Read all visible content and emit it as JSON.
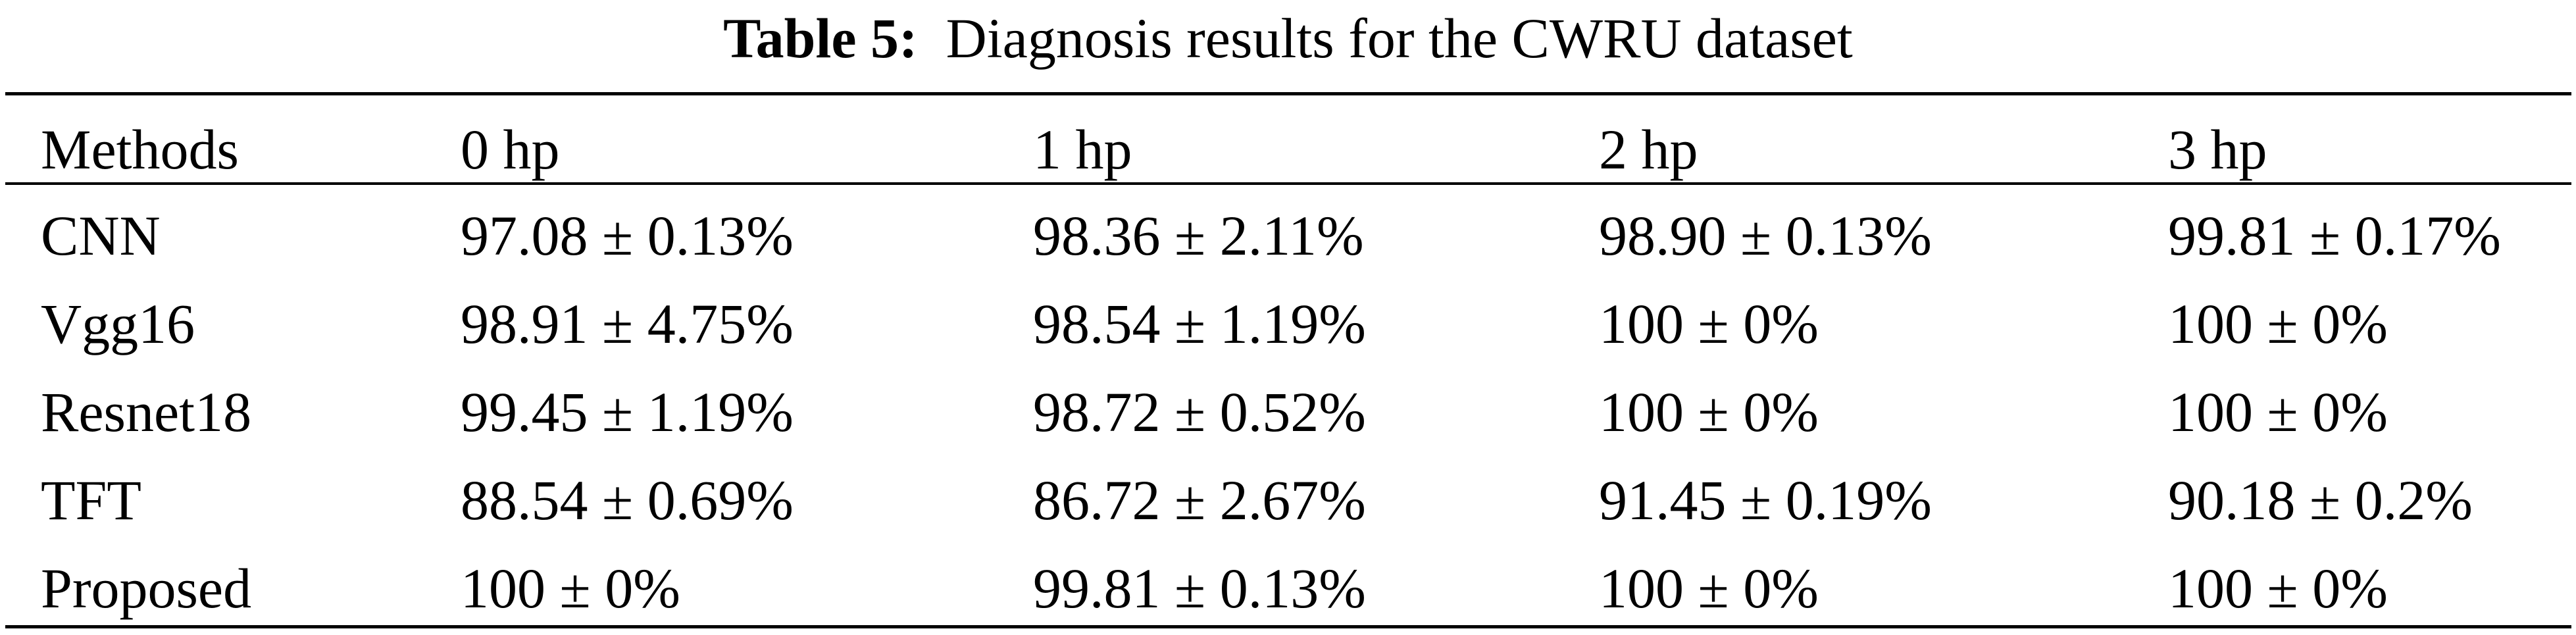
{
  "caption": {
    "label": "Table 5:",
    "text": "  Diagnosis results for the CWRU dataset"
  },
  "table": {
    "headers": [
      "Methods",
      "0 hp",
      "1 hp",
      "2 hp",
      "3 hp"
    ],
    "rows": [
      [
        "CNN",
        "97.08 ± 0.13%",
        "98.36 ± 2.11%",
        "98.90 ± 0.13%",
        "99.81 ± 0.17%"
      ],
      [
        "Vgg16",
        "98.91 ± 4.75%",
        "98.54 ± 1.19%",
        "100 ± 0%",
        "100 ± 0%"
      ],
      [
        "Resnet18",
        "99.45 ± 1.19%",
        "98.72 ± 0.52%",
        "100 ± 0%",
        "100 ± 0%"
      ],
      [
        "TFT",
        "88.54 ± 0.69%",
        "86.72 ± 2.67%",
        "91.45 ± 0.19%",
        "90.18 ± 0.2%"
      ],
      [
        "Proposed",
        "100 ± 0%",
        "99.81 ± 0.13%",
        "100 ± 0%",
        "100 ± 0%"
      ]
    ]
  }
}
